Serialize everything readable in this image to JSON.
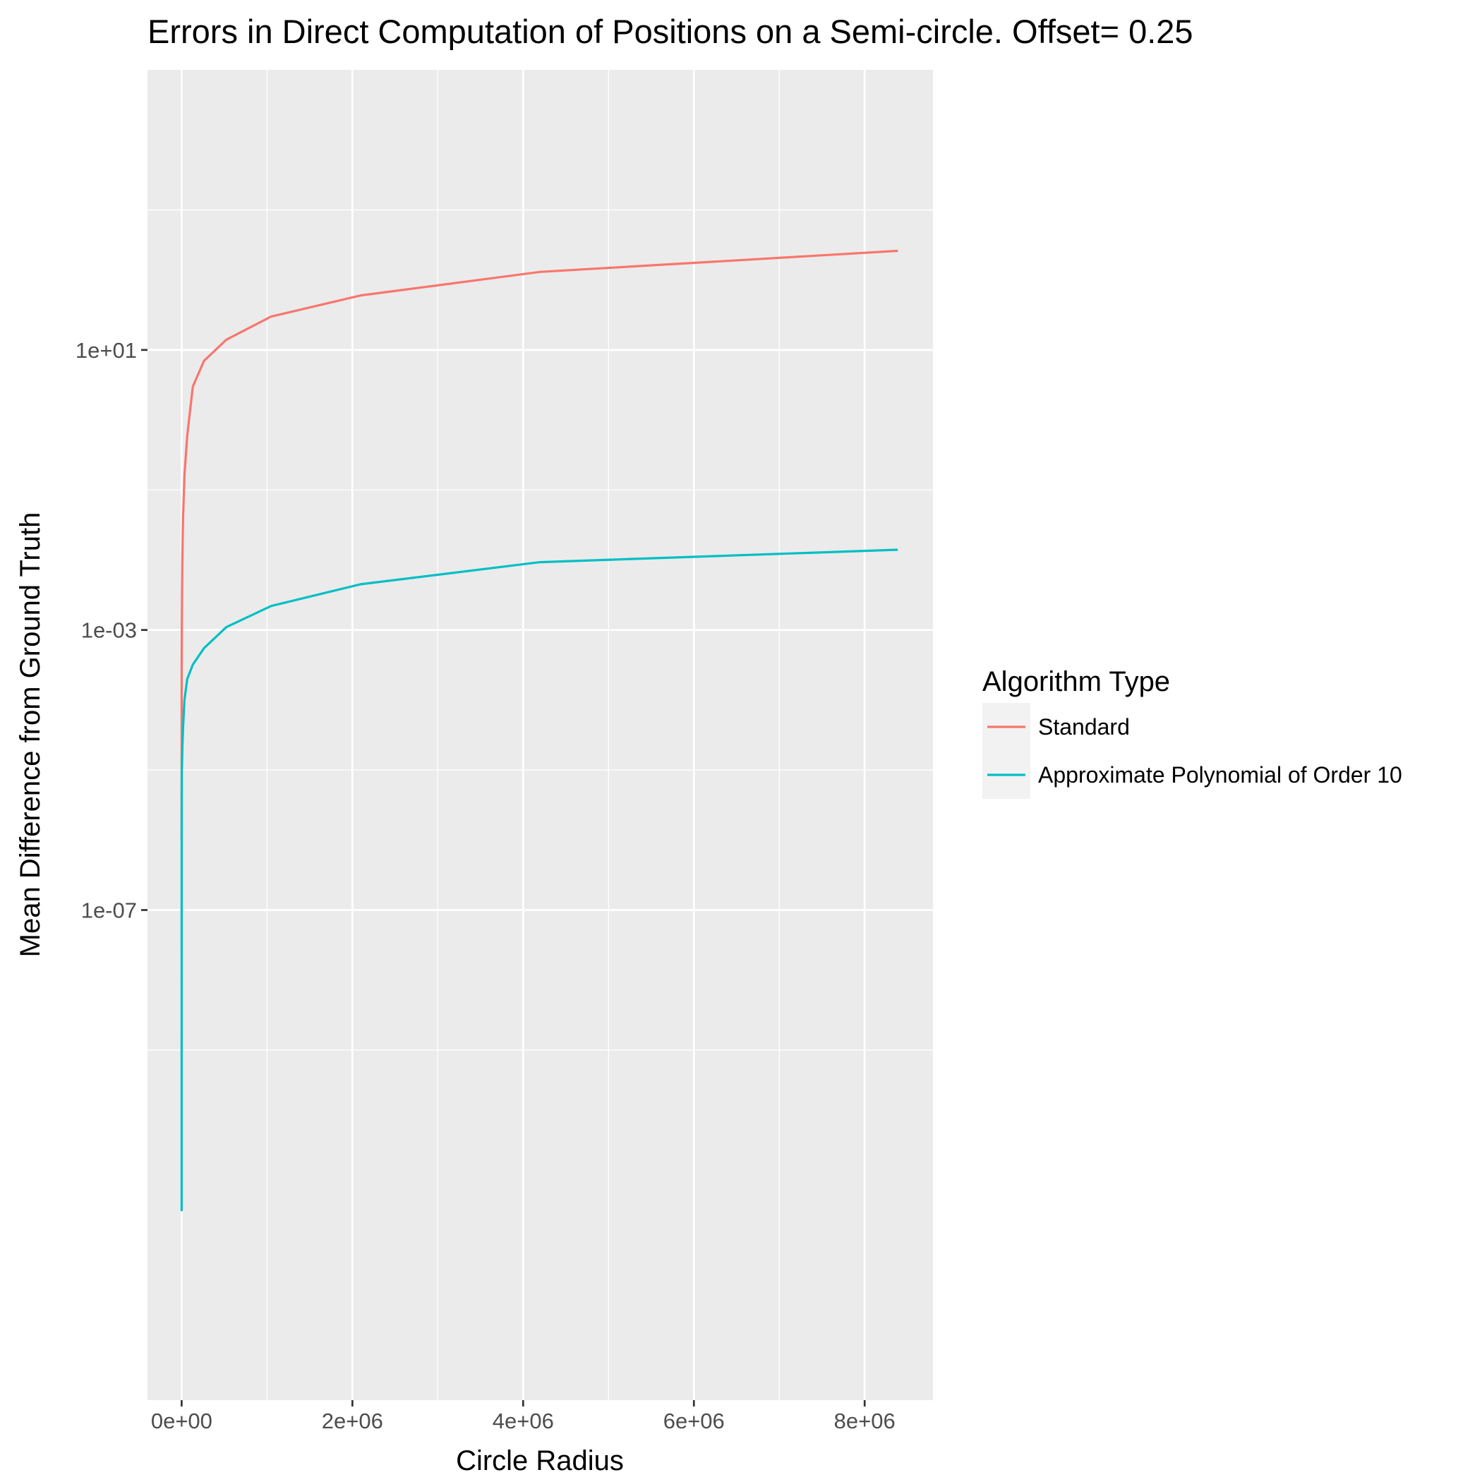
{
  "chart_data": {
    "type": "line",
    "title": "Errors in Direct Computation of Positions on a Semi-circle. Offset= 0.25",
    "xlabel": "Circle Radius",
    "ylabel": "Mean Difference from Ground Truth",
    "y_scale": "log10",
    "xlim": [
      -400000,
      8800000
    ],
    "ylim": [
      1e-14,
      100000.0
    ],
    "x_ticks": [
      0,
      2000000,
      4000000,
      6000000,
      8000000
    ],
    "x_tick_labels": [
      "0e+00",
      "2e+06",
      "4e+06",
      "6e+06",
      "8e+06"
    ],
    "y_ticks": [
      1e-07,
      0.001,
      10.0
    ],
    "y_tick_labels": [
      "1e-07",
      "1e-03",
      "1e+01"
    ],
    "grid": true,
    "legend": {
      "title": "Algorithm Type",
      "position": "right"
    },
    "series": [
      {
        "name": "Standard",
        "color": "#f8766d",
        "x": [
          1,
          2,
          4,
          8,
          16,
          32,
          64,
          128,
          256,
          512,
          1024,
          2048,
          4096,
          8192,
          16384,
          32768,
          65536,
          131072,
          262144,
          524288,
          1048576,
          2097152,
          4194304,
          8388608
        ],
        "y": [
          1e-06,
          1.6e-06,
          3e-06,
          5e-06,
          9e-06,
          1.6e-05,
          3e-05,
          6e-05,
          0.00012,
          0.00025,
          0.0005,
          0.001,
          0.003,
          0.01,
          0.04,
          0.16,
          0.6,
          3.0,
          7.0,
          14,
          30,
          60,
          130,
          260
        ]
      },
      {
        "name": "Approximate Polynomial of Order 10",
        "color": "#00bfc4",
        "x": [
          1,
          2,
          4,
          8,
          16,
          32,
          64,
          128,
          256,
          512,
          1024,
          2048,
          4096,
          8192,
          16384,
          32768,
          65536,
          131072,
          262144,
          524288,
          1048576,
          2097152,
          4194304,
          8388608
        ],
        "y": [
          5e-12,
          1e-11,
          4e-11,
          1.6e-10,
          6e-10,
          2.4e-09,
          1e-08,
          4e-08,
          1.6e-07,
          6e-07,
          2.5e-06,
          1e-05,
          1.2e-05,
          2e-05,
          4e-05,
          0.0001,
          0.0002,
          0.00032,
          0.00055,
          0.0011,
          0.0022,
          0.0045,
          0.0093,
          0.014
        ]
      }
    ]
  }
}
